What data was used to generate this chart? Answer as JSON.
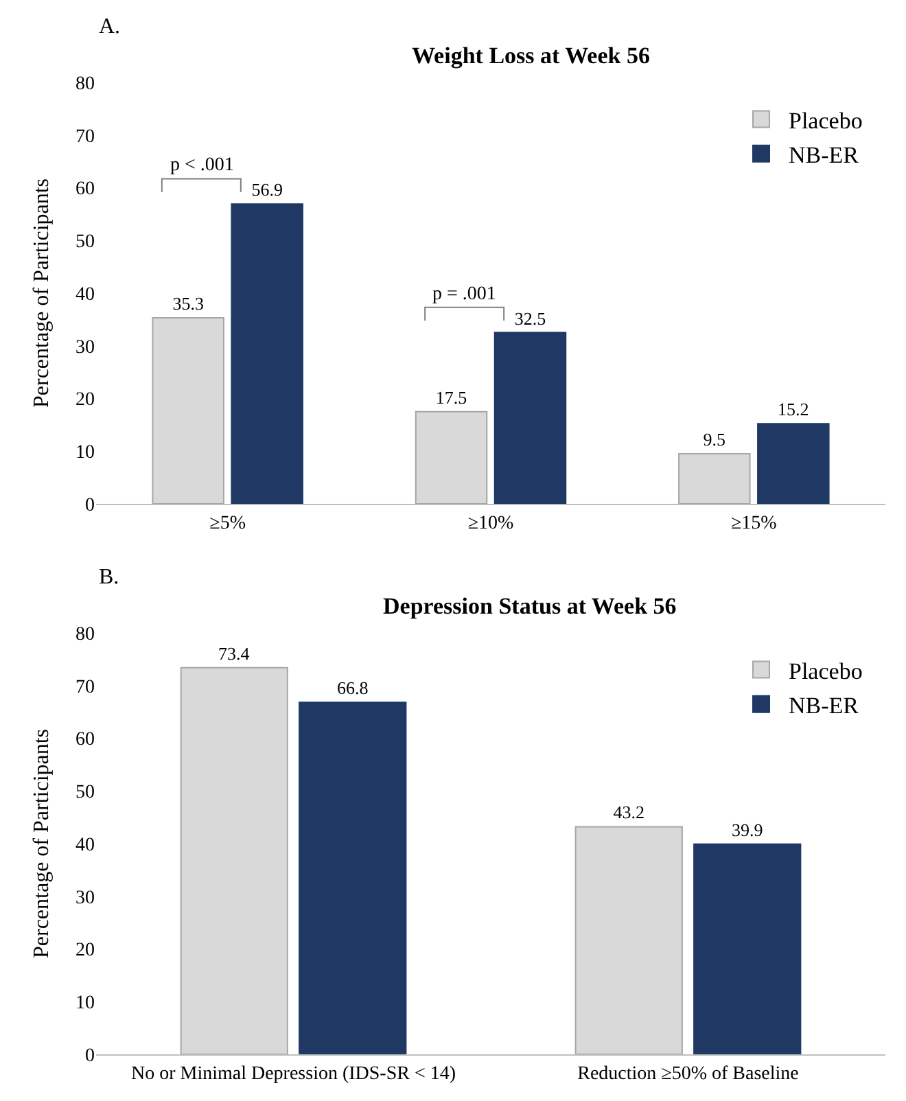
{
  "chart_data": [
    {
      "type": "bar",
      "title": "Weight Loss at Week 56",
      "ylabel": "Percentage of Participants",
      "categories": [
        "≥5%",
        "≥10%",
        "≥15%"
      ],
      "series": [
        {
          "name": "Placebo",
          "color": "#d9d9d9",
          "values": [
            35.3,
            17.5,
            9.5
          ]
        },
        {
          "name": "NB-ER",
          "color": "#1f3864",
          "values": [
            56.9,
            32.5,
            15.2
          ]
        }
      ],
      "ylim": [
        0,
        80
      ],
      "yticks": [
        0,
        10,
        20,
        30,
        40,
        50,
        60,
        70,
        80
      ],
      "data_labels": true,
      "legend": "top right",
      "annotations": [
        "A.",
        "p < .001",
        "p = .001"
      ]
    },
    {
      "type": "bar",
      "title": "Depression Status at Week 56",
      "ylabel": "Percentage of Participants",
      "categories": [
        "No or Minimal Depression (IDS-SR < 14)",
        "Reduction ≥50% of Baseline"
      ],
      "series": [
        {
          "name": "Placebo",
          "color": "#d9d9d9",
          "values": [
            73.4,
            43.2
          ]
        },
        {
          "name": "NB-ER",
          "color": "#1f3864",
          "values": [
            66.8,
            39.9
          ]
        }
      ],
      "ylim": [
        0,
        80
      ],
      "yticks": [
        0,
        10,
        20,
        30,
        40,
        50,
        60,
        70,
        80
      ],
      "data_labels": true,
      "legend": "top right",
      "annotations": [
        "B."
      ]
    }
  ]
}
